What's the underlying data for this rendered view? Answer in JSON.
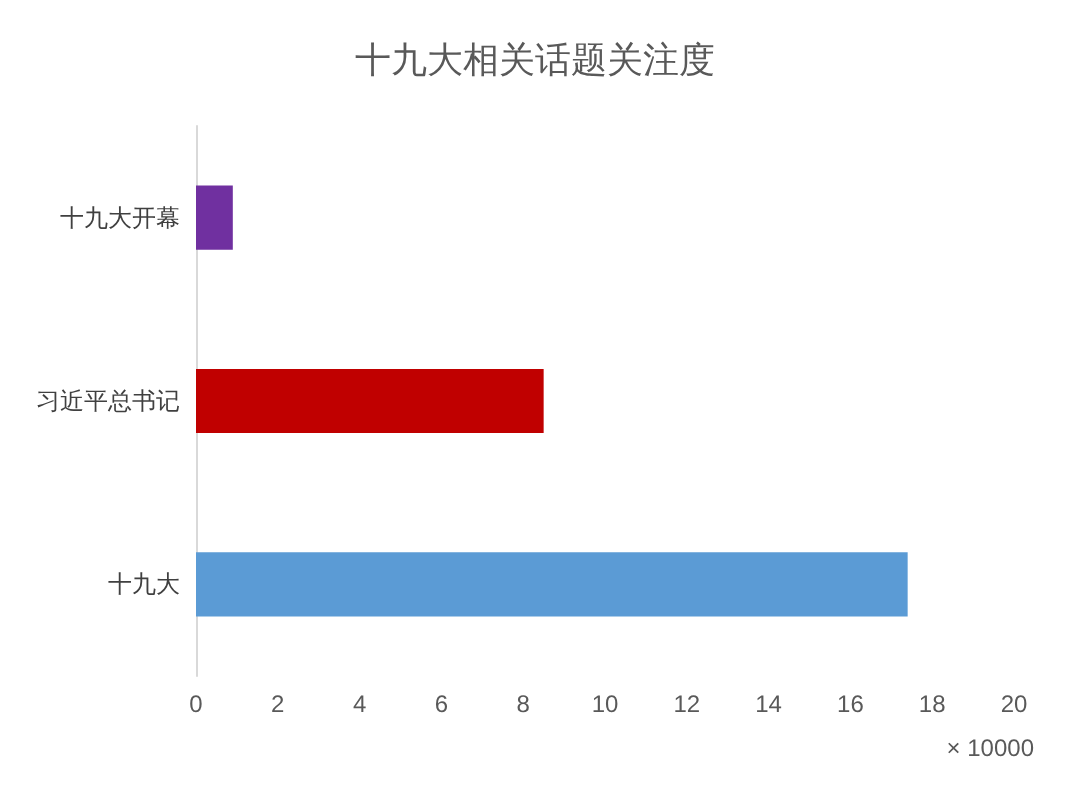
{
  "chart_data": {
    "type": "bar",
    "orientation": "horizontal",
    "title": "十九大相关话题关注度",
    "xlabel": "× 10000",
    "categories": [
      "十九大开幕",
      "习近平总书记",
      "十九大"
    ],
    "values": [
      0.9,
      8.5,
      17.4
    ],
    "colors": [
      "#7030a0",
      "#c00000",
      "#5b9bd5"
    ],
    "xlim": [
      0,
      20
    ],
    "xticks": [
      0,
      2,
      4,
      6,
      8,
      10,
      12,
      14,
      16,
      18,
      20
    ],
    "grid": false
  }
}
